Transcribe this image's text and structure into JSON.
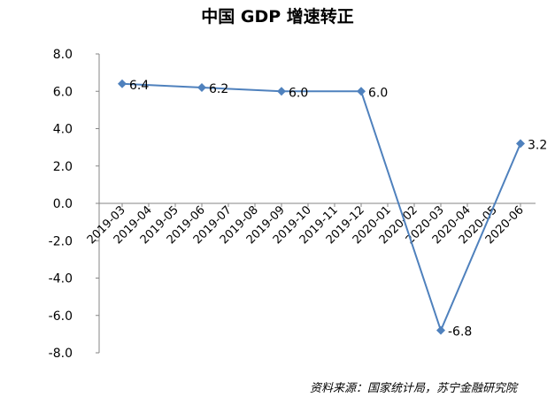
{
  "chart_data": {
    "type": "line",
    "title": "中国 GDP 增速转正",
    "categories": [
      "2019-03",
      "2019-04",
      "2019-05",
      "2019-06",
      "2019-07",
      "2019-08",
      "2019-09",
      "2019-10",
      "2019-11",
      "2019-12",
      "2020-01",
      "2020-02",
      "2020-03",
      "2020-04",
      "2020-05",
      "2020-06"
    ],
    "points": [
      {
        "x": "2019-03",
        "y": 6.4,
        "label": "6.4"
      },
      {
        "x": "2019-06",
        "y": 6.2,
        "label": "6.2"
      },
      {
        "x": "2019-09",
        "y": 6.0,
        "label": "6.0"
      },
      {
        "x": "2019-12",
        "y": 6.0,
        "label": "6.0"
      },
      {
        "x": "2020-03",
        "y": -6.8,
        "label": "-6.8"
      },
      {
        "x": "2020-06",
        "y": 3.2,
        "label": "3.2"
      }
    ],
    "ylim": [
      -8,
      8
    ],
    "yticks": [
      "8.0",
      "6.0",
      "4.0",
      "2.0",
      "0.0",
      "-2.0",
      "-4.0",
      "-6.0",
      "-8.0"
    ],
    "color": "#4f81bd",
    "marker": "diamond",
    "grid": false,
    "xlabel": "",
    "ylabel": ""
  },
  "source": "资料来源：国家统计局，苏宁金融研究院"
}
